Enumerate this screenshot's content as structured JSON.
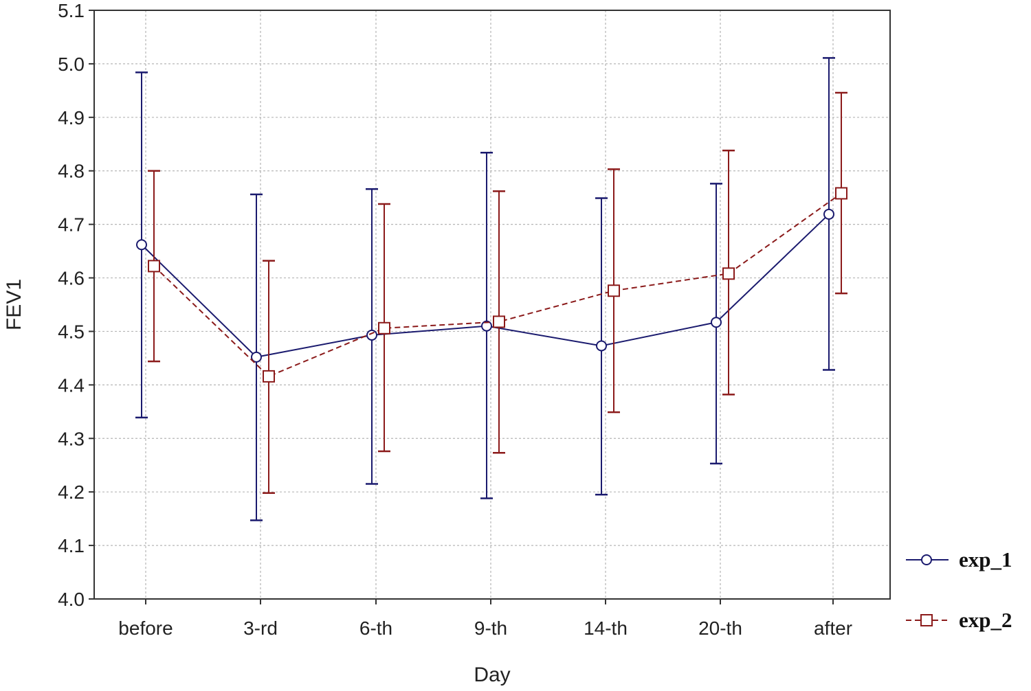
{
  "chart_data": {
    "type": "line",
    "title": "",
    "xlabel": "Day",
    "ylabel": "FEV1",
    "categories": [
      "before",
      "3-rd",
      "6-th",
      "9-th",
      "14-th",
      "20-th",
      "after"
    ],
    "ylim": [
      4.0,
      5.1
    ],
    "yticks": [
      "4.0",
      "4.1",
      "4.2",
      "4.3",
      "4.4",
      "4.5",
      "4.6",
      "4.7",
      "4.8",
      "4.9",
      "5.0",
      "5.1"
    ],
    "grid": true,
    "legend_position": "right",
    "series": [
      {
        "name": "exp_1",
        "color": "#1a1a6e",
        "marker": "circle",
        "line_style": "solid",
        "values": [
          4.662,
          4.452,
          4.493,
          4.51,
          4.473,
          4.517,
          4.719
        ],
        "upper": [
          4.984,
          4.756,
          4.766,
          4.834,
          4.749,
          4.776,
          5.011
        ],
        "lower": [
          4.339,
          4.147,
          4.215,
          4.188,
          4.195,
          4.253,
          4.428
        ]
      },
      {
        "name": "exp_2",
        "color": "#8b1a1a",
        "marker": "square",
        "line_style": "dashed",
        "values": [
          4.622,
          4.416,
          4.506,
          4.518,
          4.576,
          4.608,
          4.758
        ],
        "upper": [
          4.8,
          4.632,
          4.738,
          4.762,
          4.803,
          4.838,
          4.946
        ],
        "lower": [
          4.444,
          4.198,
          4.276,
          4.273,
          4.349,
          4.382,
          4.571
        ]
      }
    ]
  }
}
